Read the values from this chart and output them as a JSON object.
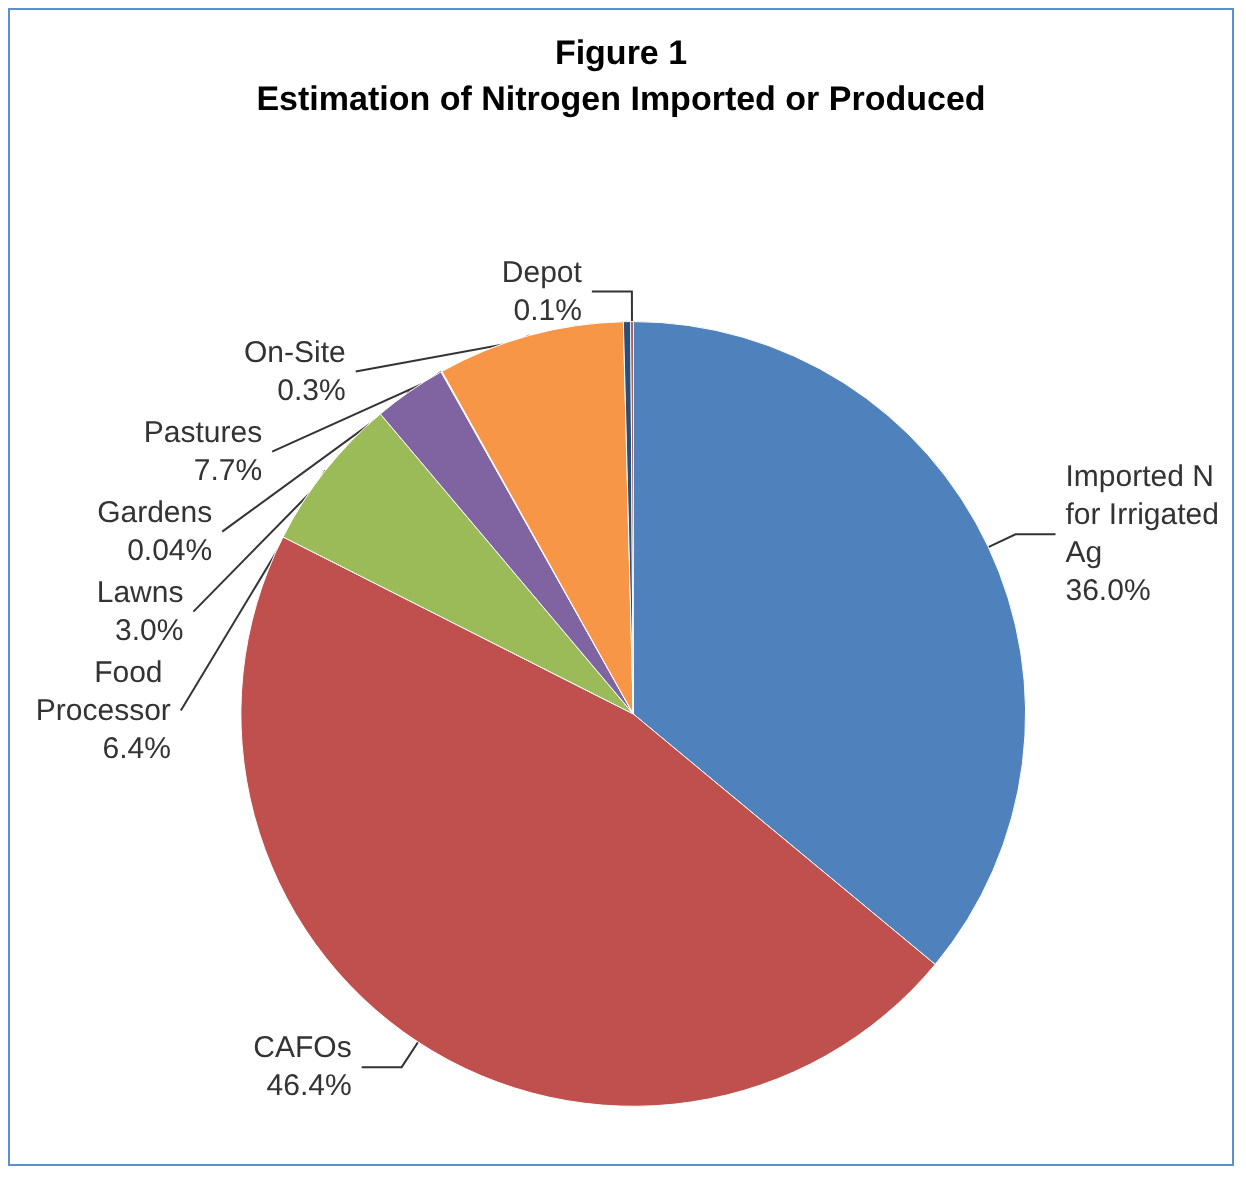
{
  "chart_data": {
    "type": "pie",
    "title": "Figure 1",
    "subtitle": "Estimation of Nitrogen Imported or Produced",
    "categories": [
      "Imported N for Irrigated Ag",
      "CAFOs",
      "Food Processor",
      "Lawns",
      "Gardens",
      "Pastures",
      "On-Site",
      "Depot"
    ],
    "values": [
      36.0,
      46.4,
      6.4,
      3.0,
      0.04,
      7.7,
      0.3,
      0.1
    ],
    "value_labels": [
      "36.0%",
      "46.4%",
      "6.4%",
      "3.0%",
      "0.04%",
      "7.7%",
      "0.3%",
      "0.1%"
    ],
    "colors": [
      "#4f81bd",
      "#c0504d",
      "#9bbb59",
      "#8064a2",
      "#4bacc6",
      "#f79646",
      "#2c4d75",
      "#772c2a"
    ],
    "legend": false
  }
}
